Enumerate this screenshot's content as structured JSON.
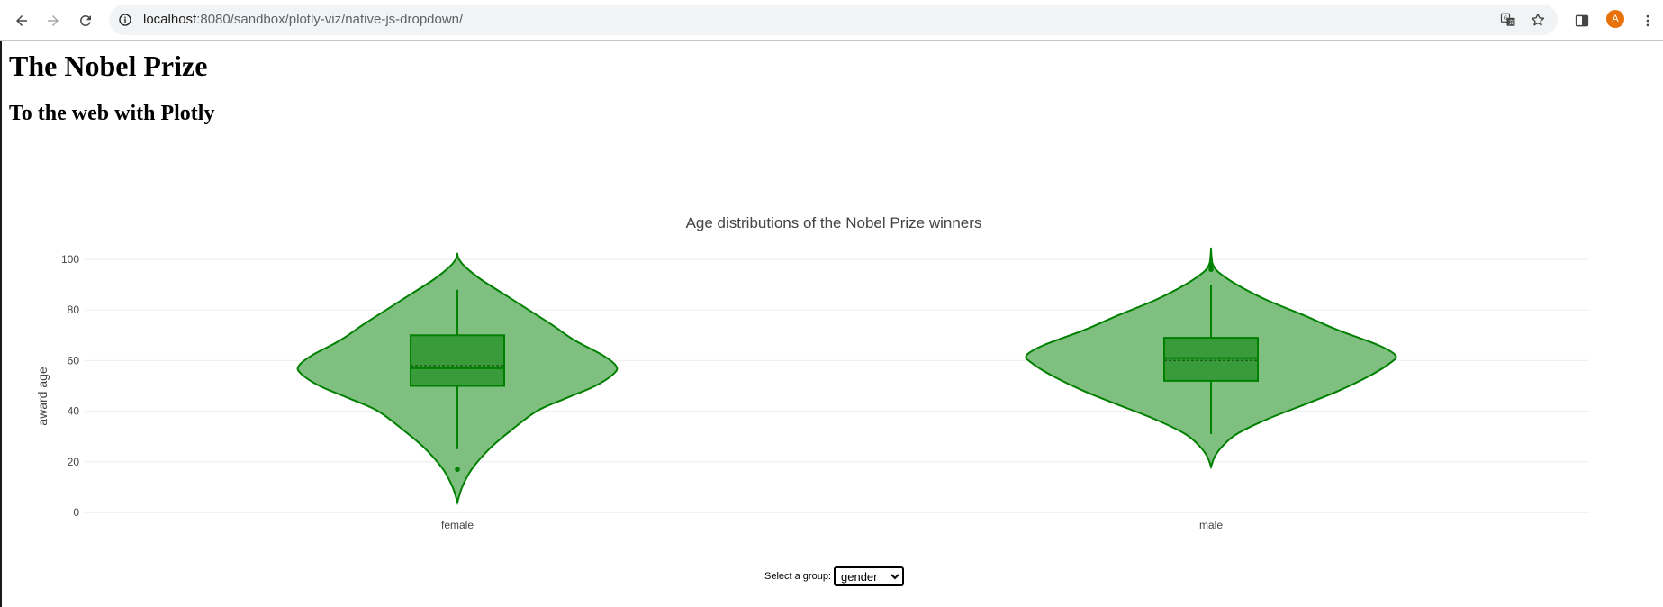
{
  "browser": {
    "url_host": "localhost",
    "url_rest": ":8080/sandbox/plotly-viz/native-js-dropdown/",
    "profile_initial": "A",
    "icons": {
      "back": "arrow-left-icon",
      "forward": "arrow-right-icon",
      "reload": "reload-icon",
      "site_info": "info-icon",
      "translate": "translate-icon",
      "bookmark": "star-icon",
      "side_panel": "side-panel-icon",
      "menu": "kebab-menu-icon"
    }
  },
  "page": {
    "title": "The Nobel Prize",
    "subtitle": "To the web with Plotly"
  },
  "controls": {
    "select_label": "Select a group:",
    "selected": "gender",
    "options": [
      "gender"
    ]
  },
  "colors": {
    "violin_fill": "#7fbf7f",
    "violin_line": "#008000",
    "box_fill": "#3a9b3a",
    "gridline": "#eeeeee"
  },
  "chart_data": {
    "type": "violin",
    "title": "Age distributions of the Nobel Prize winners",
    "xlabel": "",
    "ylabel": "award age",
    "ylim": [
      0,
      105
    ],
    "yticks": [
      0,
      20,
      40,
      60,
      80,
      100
    ],
    "grid": true,
    "categories": [
      "female",
      "male"
    ],
    "series": [
      {
        "category": "female",
        "min": 4,
        "q1": 50,
        "median": 57,
        "mean": 58,
        "q3": 70,
        "whisker_low": 25,
        "whisker_high": 88,
        "max": 102,
        "outliers": [
          17
        ],
        "density": [
          [
            4,
            0.0
          ],
          [
            10,
            0.03
          ],
          [
            17,
            0.09
          ],
          [
            25,
            0.2
          ],
          [
            32,
            0.33
          ],
          [
            40,
            0.5
          ],
          [
            45,
            0.68
          ],
          [
            50,
            0.87
          ],
          [
            55,
            0.99
          ],
          [
            58,
            1.0
          ],
          [
            62,
            0.92
          ],
          [
            68,
            0.74
          ],
          [
            74,
            0.6
          ],
          [
            80,
            0.45
          ],
          [
            86,
            0.3
          ],
          [
            92,
            0.15
          ],
          [
            97,
            0.05
          ],
          [
            100,
            0.01
          ],
          [
            102,
            0.0
          ]
        ]
      },
      {
        "category": "male",
        "min": 18,
        "q1": 52,
        "median": 61,
        "mean": 60,
        "q3": 69,
        "whisker_low": 31,
        "whisker_high": 90,
        "max": 104,
        "outliers": [
          96,
          97,
          98
        ],
        "density": [
          [
            18,
            0.0
          ],
          [
            22,
            0.02
          ],
          [
            26,
            0.06
          ],
          [
            31,
            0.14
          ],
          [
            37,
            0.31
          ],
          [
            43,
            0.52
          ],
          [
            48,
            0.69
          ],
          [
            54,
            0.86
          ],
          [
            59,
            0.97
          ],
          [
            62,
            1.0
          ],
          [
            66,
            0.91
          ],
          [
            72,
            0.69
          ],
          [
            78,
            0.5
          ],
          [
            84,
            0.3
          ],
          [
            90,
            0.14
          ],
          [
            95,
            0.04
          ],
          [
            98,
            0.01
          ],
          [
            101,
            0.003
          ],
          [
            104,
            0.0
          ]
        ]
      }
    ]
  }
}
